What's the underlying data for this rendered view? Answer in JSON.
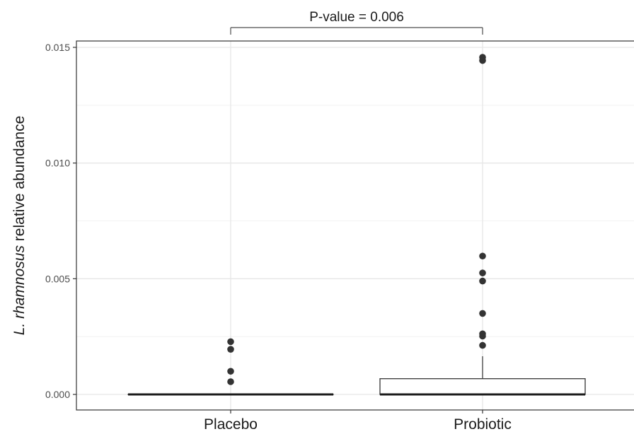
{
  "chart_data": {
    "type": "box",
    "categories": [
      "Placebo",
      "Probiotic"
    ],
    "ylabel_italic": "L. rhamnosus",
    "ylabel_rest": " relative abundance",
    "yticks": [
      0.0,
      0.005,
      0.01,
      0.015
    ],
    "ytick_labels": [
      "0.000",
      "0.005",
      "0.010",
      "0.015"
    ],
    "ylim": [
      -0.0006,
      0.0152
    ],
    "grid": true,
    "boxes": [
      {
        "name": "Placebo",
        "q1": 0.0,
        "median": 0.0,
        "q3": 0.0,
        "whisker_low": 0.0,
        "whisker_high": 0.0,
        "outliers": [
          0.00228,
          0.00195,
          0.001,
          0.00055
        ]
      },
      {
        "name": "Probiotic",
        "q1": 0.0,
        "median": 0.0,
        "q3": 0.00068,
        "whisker_low": 0.0,
        "whisker_high": 0.00165,
        "outliers": [
          0.01457,
          0.01443,
          0.00598,
          0.00525,
          0.0049,
          0.0035,
          0.00262,
          0.00252,
          0.00212
        ]
      }
    ],
    "annotation": "P-value = 0.006"
  }
}
